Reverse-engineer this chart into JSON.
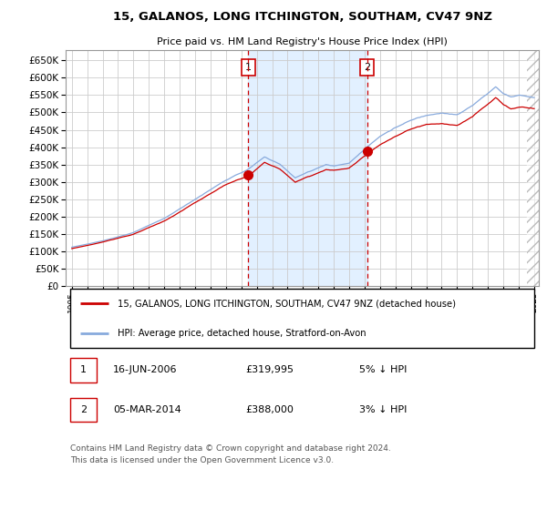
{
  "title": "15, GALANOS, LONG ITCHINGTON, SOUTHAM, CV47 9NZ",
  "subtitle": "Price paid vs. HM Land Registry's House Price Index (HPI)",
  "legend_line1": "15, GALANOS, LONG ITCHINGTON, SOUTHAM, CV47 9NZ (detached house)",
  "legend_line2": "HPI: Average price, detached house, Stratford-on-Avon",
  "annotation1_date": "16-JUN-2006",
  "annotation1_price": "£319,995",
  "annotation1_hpi": "5% ↓ HPI",
  "annotation2_date": "05-MAR-2014",
  "annotation2_price": "£388,000",
  "annotation2_hpi": "3% ↓ HPI",
  "footer": "Contains HM Land Registry data © Crown copyright and database right 2024.\nThis data is licensed under the Open Government Licence v3.0.",
  "hpi_color": "#88aadd",
  "price_color": "#cc0000",
  "dot_color": "#cc0000",
  "vline_color": "#cc0000",
  "shade_color": "#ddeeff",
  "grid_color": "#cccccc",
  "ylim": [
    0,
    680000
  ],
  "yticks": [
    0,
    50000,
    100000,
    150000,
    200000,
    250000,
    300000,
    350000,
    400000,
    450000,
    500000,
    550000,
    600000,
    650000
  ],
  "sale1_year": 2006.46,
  "sale1_value": 319995,
  "sale2_year": 2014.17,
  "sale2_value": 388000,
  "vline1_year": 2006.46,
  "vline2_year": 2014.17,
  "shade_start": 2006.46,
  "shade_end": 2014.17,
  "hatch_start": 2024.55,
  "hatch_end": 2025.3,
  "xlim_left": 1994.6,
  "xlim_right": 2025.3
}
